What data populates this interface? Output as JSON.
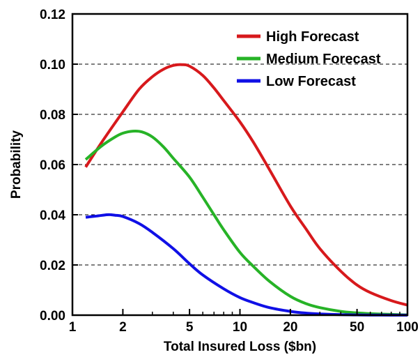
{
  "chart_data": {
    "type": "line",
    "title": "",
    "xlabel": "Total Insured Loss ($bn)",
    "ylabel": "Probability",
    "xscale": "log",
    "xlim": [
      1,
      100
    ],
    "ylim": [
      0,
      0.12
    ],
    "xticks": [
      1,
      2,
      5,
      10,
      20,
      50,
      100
    ],
    "xtick_labels": [
      "1",
      "2",
      "5",
      "10",
      "20",
      "50",
      "100"
    ],
    "yticks": [
      0,
      0.02,
      0.04,
      0.06,
      0.08,
      0.1,
      0.12
    ],
    "ytick_labels": [
      "0.00",
      "0.02",
      "0.04",
      "0.06",
      "0.08",
      "0.10",
      "0.12"
    ],
    "grid": "horizontal dashed",
    "legend_position": "top-right",
    "series": [
      {
        "name": "High Forecast",
        "color": "#d7191c",
        "x": [
          1.2,
          1.5,
          2.0,
          2.5,
          3.0,
          3.5,
          4.0,
          4.5,
          5.0,
          6.0,
          7.0,
          8.0,
          10,
          12,
          15,
          20,
          25,
          30,
          40,
          50,
          60,
          80,
          100
        ],
        "y": [
          0.059,
          0.069,
          0.081,
          0.09,
          0.095,
          0.098,
          0.0995,
          0.0998,
          0.0992,
          0.0955,
          0.0905,
          0.0855,
          0.077,
          0.069,
          0.058,
          0.0435,
          0.034,
          0.0265,
          0.0175,
          0.012,
          0.009,
          0.0058,
          0.004
        ]
      },
      {
        "name": "Medium Forecast",
        "color": "#27b327",
        "x": [
          1.2,
          1.5,
          1.8,
          2.0,
          2.3,
          2.6,
          3.0,
          3.5,
          4.0,
          5.0,
          6.0,
          7.0,
          8.0,
          10,
          12,
          15,
          20,
          25,
          30,
          40,
          50,
          60,
          80,
          100
        ],
        "y": [
          0.062,
          0.0675,
          0.071,
          0.0725,
          0.0733,
          0.073,
          0.071,
          0.067,
          0.0625,
          0.055,
          0.047,
          0.04,
          0.034,
          0.025,
          0.0195,
          0.0135,
          0.0075,
          0.0045,
          0.003,
          0.0015,
          0.0009,
          0.0006,
          0.0003,
          0.0001
        ]
      },
      {
        "name": "Low Forecast",
        "color": "#1010e6",
        "x": [
          1.2,
          1.4,
          1.6,
          1.7,
          1.8,
          2.0,
          2.5,
          3.0,
          4.0,
          5.0,
          6.0,
          8.0,
          10,
          12,
          15,
          20,
          25,
          30,
          40,
          50,
          60,
          80,
          100
        ],
        "y": [
          0.039,
          0.0395,
          0.04,
          0.04,
          0.0398,
          0.0393,
          0.0365,
          0.033,
          0.0265,
          0.0205,
          0.016,
          0.0105,
          0.007,
          0.005,
          0.003,
          0.0015,
          0.0008,
          0.0005,
          0.0002,
          0.0001,
          5e-05,
          0.0,
          0.0
        ]
      }
    ]
  }
}
